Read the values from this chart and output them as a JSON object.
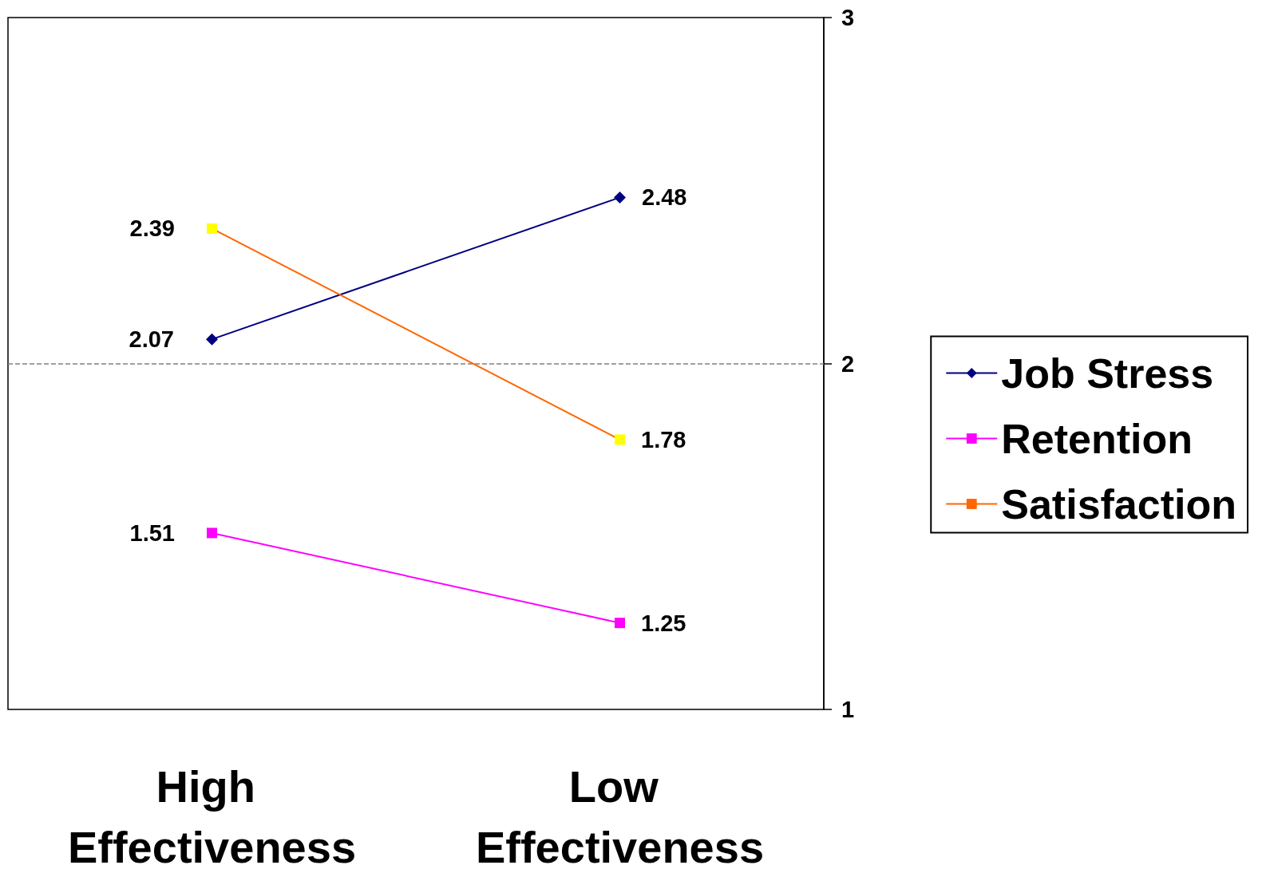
{
  "chart_data": {
    "type": "line",
    "categories": [
      "High Effectiveness",
      "Low Effectiveness"
    ],
    "series": [
      {
        "name": "Job Stress",
        "color": "#000080",
        "marker": "diamond",
        "values": [
          2.07,
          2.48
        ]
      },
      {
        "name": "Retention",
        "color": "#ff00ff",
        "marker": "square",
        "values": [
          1.51,
          1.25
        ]
      },
      {
        "name": "Satisfaction",
        "color": "#ff6600",
        "colors": [
          "#ffff00",
          "#ffff00"
        ],
        "marker": "square",
        "values": [
          2.39,
          1.78
        ]
      }
    ],
    "ylim": [
      1,
      3
    ],
    "yticks": [
      1,
      2,
      3
    ],
    "data_labels": true,
    "legend": "right",
    "grid": false,
    "ref_lines": [
      {
        "axis": "y",
        "value": 2,
        "label": null,
        "color": "#808080",
        "line_style": "dashed"
      }
    ]
  }
}
